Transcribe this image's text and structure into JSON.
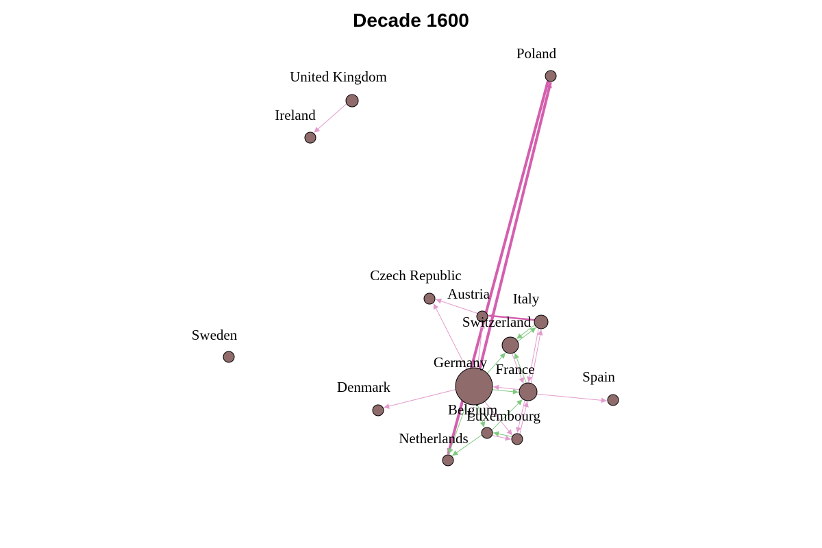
{
  "title": "Decade 1600",
  "colors": {
    "node_fill": "#8f6b6b",
    "node_stroke": "#000000",
    "edge_pink": "#d45fae",
    "edge_pink_light": "#e29bcd",
    "edge_green": "#80c980"
  },
  "nodes": [
    {
      "id": "germany",
      "label": "Germany"
    },
    {
      "id": "france",
      "label": "France"
    },
    {
      "id": "switzerland",
      "label": "Switzerland"
    },
    {
      "id": "italy",
      "label": "Italy"
    },
    {
      "id": "austria",
      "label": "Austria"
    },
    {
      "id": "czech",
      "label": "Czech Republic"
    },
    {
      "id": "poland",
      "label": "Poland"
    },
    {
      "id": "uk",
      "label": "United Kingdom"
    },
    {
      "id": "ireland",
      "label": "Ireland"
    },
    {
      "id": "sweden",
      "label": "Sweden"
    },
    {
      "id": "denmark",
      "label": "Denmark"
    },
    {
      "id": "spain",
      "label": "Spain"
    },
    {
      "id": "belgium",
      "label": "Belgium"
    },
    {
      "id": "luxembourg",
      "label": "Luxembourg"
    },
    {
      "id": "netherlands",
      "label": "Netherlands"
    }
  ],
  "edges": [
    {
      "from": "germany",
      "to": "poland",
      "color": "edge_pink",
      "weight": "heavy"
    },
    {
      "from": "poland",
      "to": "netherlands",
      "color": "edge_pink",
      "weight": "heavy"
    },
    {
      "from": "uk",
      "to": "ireland",
      "color": "edge_pink_light",
      "weight": "light"
    },
    {
      "from": "germany",
      "to": "czech",
      "color": "edge_pink_light",
      "weight": "light"
    },
    {
      "from": "germany",
      "to": "austria",
      "color": "edge_pink_light",
      "weight": "light"
    },
    {
      "from": "germany",
      "to": "denmark",
      "color": "edge_pink_light",
      "weight": "light"
    },
    {
      "from": "austria",
      "to": "czech",
      "color": "edge_pink_light",
      "weight": "light"
    },
    {
      "from": "italy",
      "to": "austria",
      "color": "edge_pink",
      "weight": "medium"
    },
    {
      "from": "switzerland",
      "to": "italy",
      "color": "edge_green",
      "weight": "light"
    },
    {
      "from": "italy",
      "to": "switzerland",
      "color": "edge_green",
      "weight": "light"
    },
    {
      "from": "germany",
      "to": "switzerland",
      "color": "edge_green",
      "weight": "light"
    },
    {
      "from": "france",
      "to": "switzerland",
      "color": "edge_green",
      "weight": "light"
    },
    {
      "from": "switzerland",
      "to": "france",
      "color": "edge_pink_light",
      "weight": "light"
    },
    {
      "from": "france",
      "to": "italy",
      "color": "edge_pink_light",
      "weight": "light"
    },
    {
      "from": "italy",
      "to": "france",
      "color": "edge_pink_light",
      "weight": "light"
    },
    {
      "from": "france",
      "to": "germany",
      "color": "edge_pink_light",
      "weight": "light"
    },
    {
      "from": "germany",
      "to": "france",
      "color": "edge_green",
      "weight": "light"
    },
    {
      "from": "france",
      "to": "spain",
      "color": "edge_pink_light",
      "weight": "light"
    },
    {
      "from": "germany",
      "to": "belgium",
      "color": "edge_green",
      "weight": "light"
    },
    {
      "from": "belgium",
      "to": "france",
      "color": "edge_green",
      "weight": "light"
    },
    {
      "from": "france",
      "to": "luxembourg",
      "color": "edge_pink_light",
      "weight": "light"
    },
    {
      "from": "luxembourg",
      "to": "france",
      "color": "edge_pink_light",
      "weight": "light"
    },
    {
      "from": "belgium",
      "to": "luxembourg",
      "color": "edge_pink_light",
      "weight": "light"
    },
    {
      "from": "luxembourg",
      "to": "belgium",
      "color": "edge_green",
      "weight": "light"
    },
    {
      "from": "belgium",
      "to": "netherlands",
      "color": "edge_green",
      "weight": "light"
    },
    {
      "from": "germany",
      "to": "netherlands",
      "color": "edge_green",
      "weight": "light"
    },
    {
      "from": "germany",
      "to": "luxembourg",
      "color": "edge_pink_light",
      "weight": "light"
    }
  ]
}
